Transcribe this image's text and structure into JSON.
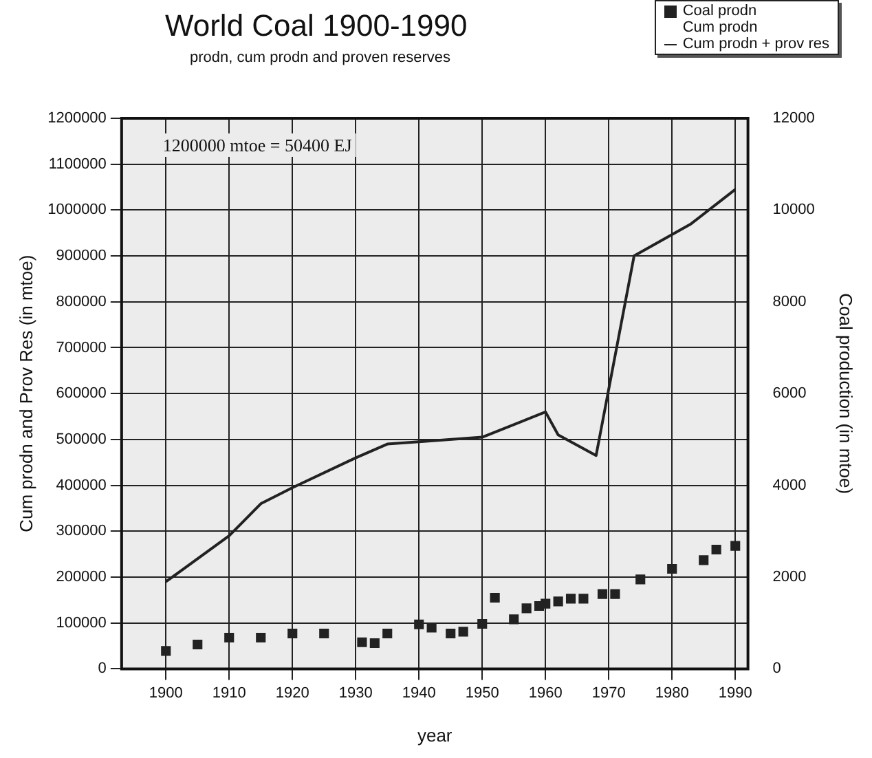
{
  "chart_data": {
    "type": "line",
    "title": "World Coal 1900-1990",
    "subtitle": "prodn, cum prodn and proven reserves",
    "xlabel": "year",
    "ylabel": "Cum prodn and Prov Res (in mtoe)",
    "y2label": "Coal production (in mtoe)",
    "annotations": [
      "1200000 mtoe = 50400 EJ"
    ],
    "series": [
      {
        "name": "Coal prodn",
        "type": "scatter",
        "axis": "y2",
        "marker": "square",
        "color": "#222222",
        "x": [
          1900,
          1905,
          1910,
          1915,
          1920,
          1925,
          1931,
          1933,
          1935,
          1940,
          1942,
          1945,
          1947,
          1950,
          1952,
          1955,
          1957,
          1959,
          1960,
          1962,
          1964,
          1966,
          1969,
          1971,
          1975,
          1980,
          1985,
          1987,
          1990
        ],
        "values": [
          390,
          530,
          680,
          680,
          770,
          770,
          580,
          560,
          770,
          970,
          900,
          770,
          810,
          980,
          1550,
          1080,
          1320,
          1370,
          1420,
          1470,
          1530,
          1530,
          1630,
          1630,
          1950,
          2180,
          2370,
          2600,
          2680
        ]
      },
      {
        "name": "Cum prodn"
      },
      {
        "name": "Cum prodn + prov res",
        "marker": "none",
        "line_style": "solid",
        "color": "#222222",
        "x": [
          1900,
          1910,
          1915,
          1920,
          1930,
          1935,
          1940,
          1950,
          1960,
          1962,
          1968,
          1974,
          1983,
          1990
        ],
        "values": [
          190000,
          290000,
          360000,
          395000,
          460000,
          490000,
          495000,
          505000,
          560000,
          510000,
          465000,
          900000,
          970000,
          1045000
        ]
      }
    ],
    "xlim": [
      1893,
      1992
    ],
    "xticks": [
      1900,
      1910,
      1920,
      1930,
      1940,
      1950,
      1960,
      1970,
      1980,
      1990
    ],
    "ylim": [
      0,
      1200000
    ],
    "yticks": [
      0,
      100000,
      200000,
      300000,
      400000,
      500000,
      600000,
      700000,
      800000,
      900000,
      1000000,
      1100000,
      1200000
    ],
    "y2lim": [
      0,
      12000
    ],
    "y2ticks": [
      0,
      2000,
      4000,
      6000,
      8000,
      10000,
      12000
    ],
    "grid": true,
    "legend": "top right"
  }
}
